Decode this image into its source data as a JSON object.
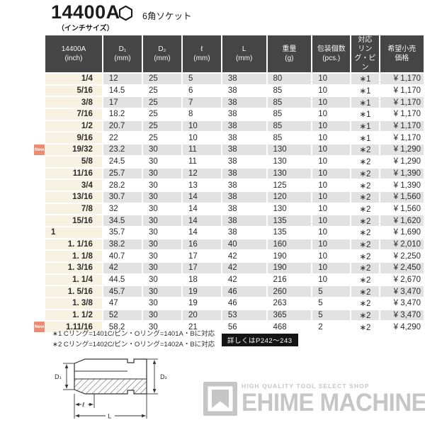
{
  "header": {
    "model": "14400A",
    "size_note": "（インチサイズ）",
    "socket_type": "6角ソケット",
    "hexagon_icon": "hexagon-outline-icon"
  },
  "table": {
    "col_headers": [
      [
        "14400A",
        "(inch)"
      ],
      [
        "D₁",
        "(mm)"
      ],
      [
        "D₂",
        "(mm)"
      ],
      [
        "ℓ",
        "(mm)"
      ],
      [
        "L",
        "(mm)"
      ],
      [
        "重量",
        "(g)"
      ],
      [
        "包装個数",
        "(pcs.)"
      ],
      [
        "対応",
        "リング・ピン"
      ],
      [
        "希望小売",
        "価格"
      ]
    ],
    "rows": [
      {
        "size_inch": "1/4",
        "d1_mm": "12",
        "d2_mm": "25",
        "l_mm": "5",
        "L_mm": "38",
        "weight_g": "80",
        "pcs": "10",
        "ring_pin": "∗1",
        "price": "¥ 1,170",
        "is_new": false
      },
      {
        "size_inch": "5/16",
        "d1_mm": "14.5",
        "d2_mm": "25",
        "l_mm": "6",
        "L_mm": "38",
        "weight_g": "85",
        "pcs": "10",
        "ring_pin": "∗1",
        "price": "¥ 1,170",
        "is_new": false
      },
      {
        "size_inch": "3/8",
        "d1_mm": "17",
        "d2_mm": "25",
        "l_mm": "7",
        "L_mm": "38",
        "weight_g": "85",
        "pcs": "10",
        "ring_pin": "∗1",
        "price": "¥ 1,170",
        "is_new": false
      },
      {
        "size_inch": "7/16",
        "d1_mm": "18.2",
        "d2_mm": "25",
        "l_mm": "8",
        "L_mm": "38",
        "weight_g": "85",
        "pcs": "10",
        "ring_pin": "∗1",
        "price": "¥ 1,170",
        "is_new": false
      },
      {
        "size_inch": "1/2",
        "d1_mm": "20.7",
        "d2_mm": "25",
        "l_mm": "10",
        "L_mm": "38",
        "weight_g": "85",
        "pcs": "10",
        "ring_pin": "∗1",
        "price": "¥ 1,170",
        "is_new": false
      },
      {
        "size_inch": "9/16",
        "d1_mm": "22",
        "d2_mm": "25",
        "l_mm": "10",
        "L_mm": "38",
        "weight_g": "85",
        "pcs": "10",
        "ring_pin": "∗1",
        "price": "¥ 1,170",
        "is_new": false
      },
      {
        "size_inch": "19/32",
        "d1_mm": "23.2",
        "d2_mm": "30",
        "l_mm": "11",
        "L_mm": "38",
        "weight_g": "130",
        "pcs": "10",
        "ring_pin": "∗2",
        "price": "¥ 1,290",
        "is_new": true
      },
      {
        "size_inch": "5/8",
        "d1_mm": "24.5",
        "d2_mm": "30",
        "l_mm": "11",
        "L_mm": "38",
        "weight_g": "130",
        "pcs": "10",
        "ring_pin": "∗2",
        "price": "¥ 1,290",
        "is_new": false
      },
      {
        "size_inch": "11/16",
        "d1_mm": "25.7",
        "d2_mm": "30",
        "l_mm": "12",
        "L_mm": "38",
        "weight_g": "130",
        "pcs": "10",
        "ring_pin": "∗2",
        "price": "¥ 1,390",
        "is_new": false
      },
      {
        "size_inch": "3/4",
        "d1_mm": "28.2",
        "d2_mm": "30",
        "l_mm": "13",
        "L_mm": "38",
        "weight_g": "125",
        "pcs": "10",
        "ring_pin": "∗2",
        "price": "¥ 1,390",
        "is_new": false
      },
      {
        "size_inch": "13/16",
        "d1_mm": "30.7",
        "d2_mm": "30",
        "l_mm": "14",
        "L_mm": "38",
        "weight_g": "120",
        "pcs": "10",
        "ring_pin": "∗2",
        "price": "¥ 1,560",
        "is_new": false
      },
      {
        "size_inch": "7/8",
        "d1_mm": "32",
        "d2_mm": "30",
        "l_mm": "14",
        "L_mm": "38",
        "weight_g": "130",
        "pcs": "10",
        "ring_pin": "∗2",
        "price": "¥ 1,560",
        "is_new": false
      },
      {
        "size_inch": "15/16",
        "d1_mm": "34.5",
        "d2_mm": "30",
        "l_mm": "14",
        "L_mm": "38",
        "weight_g": "135",
        "pcs": "10",
        "ring_pin": "∗2",
        "price": "¥ 1,620",
        "is_new": false
      },
      {
        "size_inch": "1",
        "d1_mm": "35.7",
        "d2_mm": "30",
        "l_mm": "14",
        "L_mm": "38",
        "weight_g": "135",
        "pcs": "10",
        "ring_pin": "∗2",
        "price": "¥ 1,690",
        "is_new": false
      },
      {
        "size_inch": "1. 1/16",
        "d1_mm": "38.2",
        "d2_mm": "30",
        "l_mm": "16",
        "L_mm": "40",
        "weight_g": "160",
        "pcs": "10",
        "ring_pin": "∗2",
        "price": "¥ 2,010",
        "is_new": false
      },
      {
        "size_inch": "1. 1/8",
        "d1_mm": "40.7",
        "d2_mm": "30",
        "l_mm": "17",
        "L_mm": "42",
        "weight_g": "190",
        "pcs": "10",
        "ring_pin": "∗2",
        "price": "¥ 2,250",
        "is_new": false
      },
      {
        "size_inch": "1. 3/16",
        "d1_mm": "42",
        "d2_mm": "30",
        "l_mm": "17",
        "L_mm": "42",
        "weight_g": "190",
        "pcs": "10",
        "ring_pin": "∗2",
        "price": "¥ 2,450",
        "is_new": false
      },
      {
        "size_inch": "1. 1/4",
        "d1_mm": "44.5",
        "d2_mm": "30",
        "l_mm": "18",
        "L_mm": "42",
        "weight_g": "216",
        "pcs": "10",
        "ring_pin": "∗2",
        "price": "¥ 2,670",
        "is_new": false
      },
      {
        "size_inch": "1. 5/16",
        "d1_mm": "45.7",
        "d2_mm": "30",
        "l_mm": "19",
        "L_mm": "46",
        "weight_g": "260",
        "pcs": "5",
        "ring_pin": "∗2",
        "price": "¥ 3,470",
        "is_new": false
      },
      {
        "size_inch": "1. 3/8",
        "d1_mm": "47",
        "d2_mm": "30",
        "l_mm": "19",
        "L_mm": "46",
        "weight_g": "263",
        "pcs": "5",
        "ring_pin": "∗2",
        "price": "¥ 3,470",
        "is_new": false
      },
      {
        "size_inch": "1. 1/2",
        "d1_mm": "52",
        "d2_mm": "30",
        "l_mm": "20",
        "L_mm": "53",
        "weight_g": "365",
        "pcs": "5",
        "ring_pin": "∗2",
        "price": "¥ 3,470",
        "is_new": false
      },
      {
        "size_inch": "1.11/16",
        "d1_mm": "58.2",
        "d2_mm": "30",
        "l_mm": "21",
        "L_mm": "56",
        "weight_g": "468",
        "pcs": "2",
        "ring_pin": "∗2",
        "price": "¥ 4,290",
        "is_new": true
      }
    ]
  },
  "new_badge_label": "New",
  "footnotes": {
    "note1": "∗1 Cリング=1401C/ピン・Oリング=1401A・Bに対応",
    "note2": "∗2 Cリング=1402C/ピン・Oリング=1402A・Bに対応",
    "detail_badge": "詳しくはP242～243"
  },
  "diagram": {
    "labels": {
      "d1": "D₁",
      "d2": "D₂",
      "l_small": "ℓ",
      "l_total": "L"
    }
  },
  "watermark": {
    "tagline": "HIGH QUALITY TOOL SELECT SHOP",
    "name": "EHIME MACHINE"
  },
  "colors": {
    "header_bg": "#454545",
    "row_alt_gray": "#e2e2e2",
    "size_column_bg": "#f8f2e3",
    "new_badge": "#ef8a72",
    "detail_badge_bg": "#141414",
    "watermark_gray": "#c6c6c6"
  }
}
